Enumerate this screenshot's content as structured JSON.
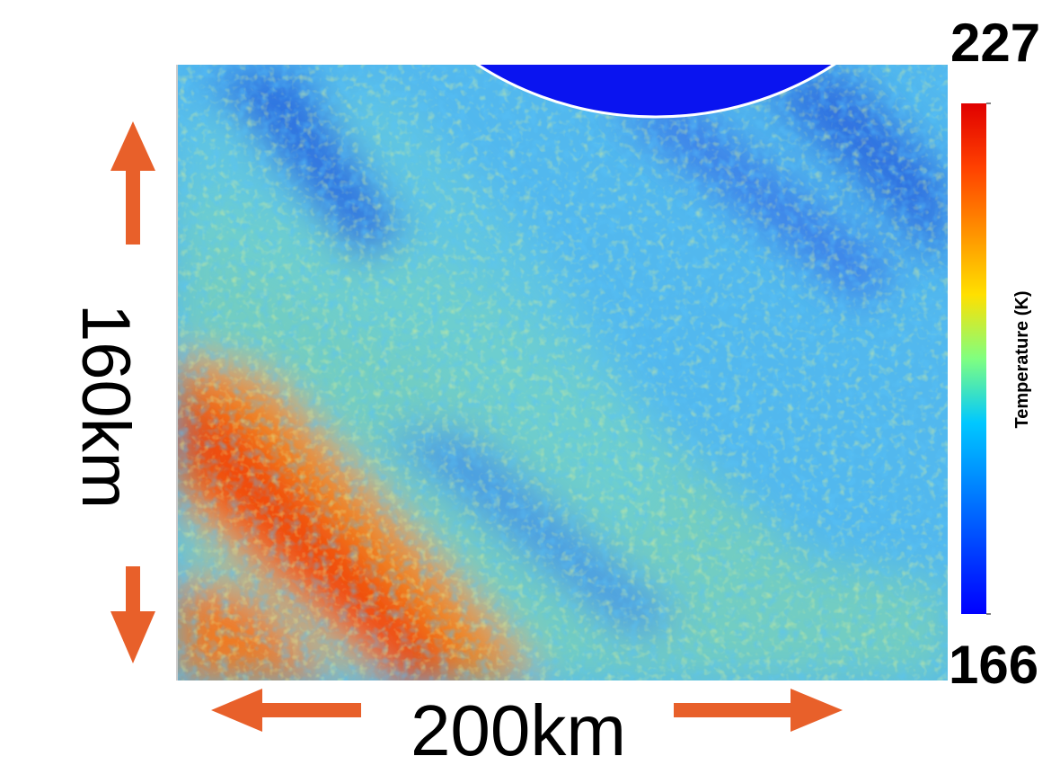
{
  "chart_data": {
    "type": "heatmap",
    "x_extent_label": "200km",
    "y_extent_label": "160km",
    "colorbar": {
      "label": "Temperature (K)",
      "clim": [
        166,
        227
      ],
      "colormap": "jet"
    }
  }
}
